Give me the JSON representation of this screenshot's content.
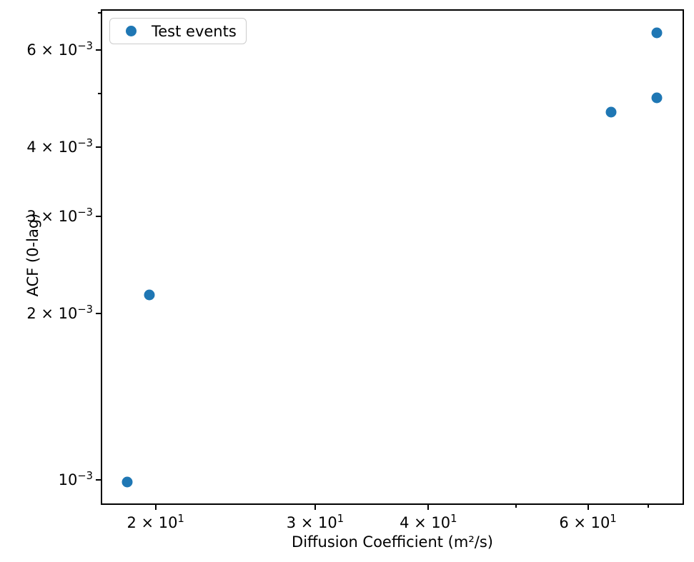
{
  "chart_data": {
    "type": "scatter",
    "title": "",
    "xlabel": "Diffusion Coefficient (m²/s)",
    "ylabel": "ACF (0-lag)",
    "xscale": "log",
    "yscale": "log",
    "xlim": [
      17.4,
      76.6
    ],
    "ylim": [
      0.000901,
      0.00711
    ],
    "grid": false,
    "legend": {
      "label": "Test events",
      "position": "upper left"
    },
    "series": [
      {
        "name": "Test events",
        "color": "#1f77b4",
        "marker": "circle",
        "points": [
          {
            "x": 18.6,
            "y": 0.00099
          },
          {
            "x": 19.7,
            "y": 0.00216
          },
          {
            "x": 63.7,
            "y": 0.00463
          },
          {
            "x": 71.5,
            "y": 0.00491
          },
          {
            "x": 71.5,
            "y": 0.00644
          }
        ]
      }
    ],
    "x_ticks": [
      {
        "value": 20,
        "base": "2 × 10",
        "exp": "1"
      },
      {
        "value": 30,
        "base": "3 × 10",
        "exp": "1"
      },
      {
        "value": 40,
        "base": "4 × 10",
        "exp": "1"
      },
      {
        "value": 60,
        "base": "6 × 10",
        "exp": "1"
      }
    ],
    "x_minor_ticks": [
      50,
      70
    ],
    "y_ticks": [
      {
        "value": 0.001,
        "base": "10",
        "exp": "−3"
      },
      {
        "value": 0.002,
        "base": "2 × 10",
        "exp": "−3"
      },
      {
        "value": 0.003,
        "base": "3 × 10",
        "exp": "−3"
      },
      {
        "value": 0.004,
        "base": "4 × 10",
        "exp": "−3"
      },
      {
        "value": 0.006,
        "base": "6 × 10",
        "exp": "−3"
      }
    ],
    "y_minor_ticks": [
      0.005,
      0.007
    ]
  }
}
